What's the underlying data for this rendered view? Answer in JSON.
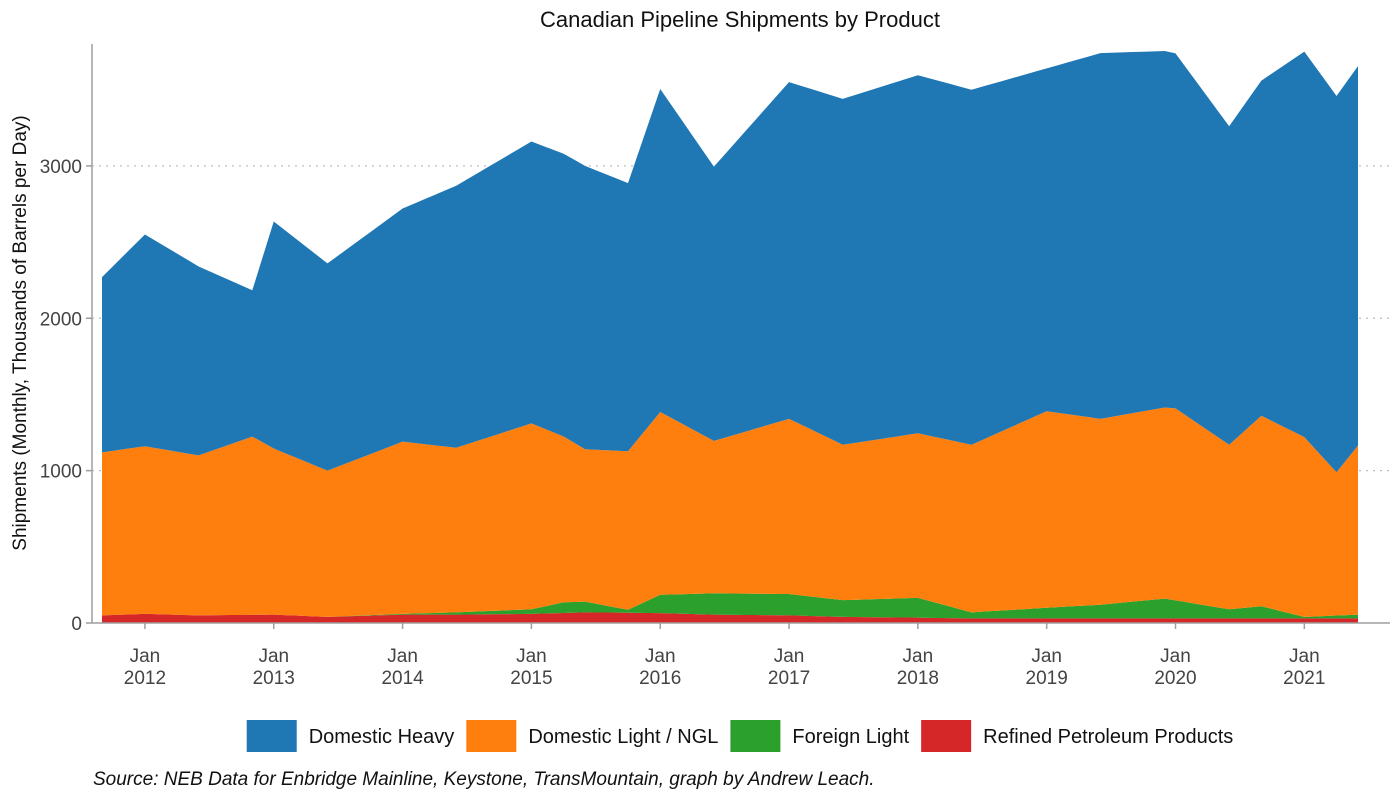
{
  "chart_data": {
    "type": "area",
    "stacked": true,
    "title": "Canadian Pipeline Shipments by Product",
    "ylabel": "Shipments (Monthly, Thousands of Barrels per Day)",
    "xlabel": "",
    "ylim": [
      0,
      3800
    ],
    "y_ticks": [
      0,
      1000,
      2000,
      3000
    ],
    "grid": "horizontal dotted",
    "legend_position": "bottom",
    "x_start": "2011-09",
    "x_end": "2021-06",
    "x_ticks": [
      {
        "month": "Jan",
        "year": "2012",
        "date": "2012-01"
      },
      {
        "month": "Jan",
        "year": "2013",
        "date": "2013-01"
      },
      {
        "month": "Jan",
        "year": "2014",
        "date": "2014-01"
      },
      {
        "month": "Jan",
        "year": "2015",
        "date": "2015-01"
      },
      {
        "month": "Jan",
        "year": "2016",
        "date": "2016-01"
      },
      {
        "month": "Jan",
        "year": "2017",
        "date": "2017-01"
      },
      {
        "month": "Jan",
        "year": "2018",
        "date": "2018-01"
      },
      {
        "month": "Jan",
        "year": "2019",
        "date": "2019-01"
      },
      {
        "month": "Jan",
        "year": "2020",
        "date": "2020-01"
      },
      {
        "month": "Jan",
        "year": "2021",
        "date": "2021-01"
      }
    ],
    "series": [
      {
        "name": "Refined Petroleum Products",
        "color": "#d62728",
        "values": [
          {
            "x": "2011-09",
            "y": 50
          },
          {
            "x": "2012-01",
            "y": 60
          },
          {
            "x": "2012-06",
            "y": 50
          },
          {
            "x": "2013-01",
            "y": 55
          },
          {
            "x": "2013-06",
            "y": 40
          },
          {
            "x": "2014-01",
            "y": 55
          },
          {
            "x": "2014-06",
            "y": 55
          },
          {
            "x": "2015-01",
            "y": 60
          },
          {
            "x": "2015-06",
            "y": 70
          },
          {
            "x": "2016-01",
            "y": 65
          },
          {
            "x": "2016-06",
            "y": 55
          },
          {
            "x": "2017-01",
            "y": 50
          },
          {
            "x": "2017-06",
            "y": 40
          },
          {
            "x": "2018-01",
            "y": 35
          },
          {
            "x": "2018-06",
            "y": 30
          },
          {
            "x": "2019-01",
            "y": 30
          },
          {
            "x": "2019-06",
            "y": 30
          },
          {
            "x": "2020-01",
            "y": 30
          },
          {
            "x": "2020-06",
            "y": 30
          },
          {
            "x": "2021-01",
            "y": 30
          },
          {
            "x": "2021-06",
            "y": 30
          }
        ]
      },
      {
        "name": "Foreign Light",
        "color": "#2ca02c",
        "values": [
          {
            "x": "2011-09",
            "y": 0
          },
          {
            "x": "2012-01",
            "y": 0
          },
          {
            "x": "2012-06",
            "y": 0
          },
          {
            "x": "2013-01",
            "y": 0
          },
          {
            "x": "2013-06",
            "y": 0
          },
          {
            "x": "2014-01",
            "y": 5
          },
          {
            "x": "2014-06",
            "y": 15
          },
          {
            "x": "2015-01",
            "y": 30
          },
          {
            "x": "2015-04",
            "y": 70
          },
          {
            "x": "2015-06",
            "y": 70
          },
          {
            "x": "2015-10",
            "y": 20
          },
          {
            "x": "2016-01",
            "y": 120
          },
          {
            "x": "2016-06",
            "y": 140
          },
          {
            "x": "2017-01",
            "y": 140
          },
          {
            "x": "2017-06",
            "y": 110
          },
          {
            "x": "2018-01",
            "y": 130
          },
          {
            "x": "2018-06",
            "y": 40
          },
          {
            "x": "2019-01",
            "y": 70
          },
          {
            "x": "2019-06",
            "y": 90
          },
          {
            "x": "2019-12",
            "y": 130
          },
          {
            "x": "2020-06",
            "y": 60
          },
          {
            "x": "2020-09",
            "y": 80
          },
          {
            "x": "2021-01",
            "y": 10
          },
          {
            "x": "2021-06",
            "y": 25
          }
        ]
      },
      {
        "name": "Domestic Light / NGL",
        "color": "#ff7f0e",
        "values": [
          {
            "x": "2011-09",
            "y": 1070
          },
          {
            "x": "2012-01",
            "y": 1100
          },
          {
            "x": "2012-06",
            "y": 1050
          },
          {
            "x": "2012-11",
            "y": 1170
          },
          {
            "x": "2013-01",
            "y": 1090
          },
          {
            "x": "2013-06",
            "y": 960
          },
          {
            "x": "2014-01",
            "y": 1130
          },
          {
            "x": "2014-06",
            "y": 1080
          },
          {
            "x": "2015-01",
            "y": 1220
          },
          {
            "x": "2015-06",
            "y": 1000
          },
          {
            "x": "2015-10",
            "y": 1040
          },
          {
            "x": "2016-01",
            "y": 1200
          },
          {
            "x": "2016-06",
            "y": 1000
          },
          {
            "x": "2017-01",
            "y": 1150
          },
          {
            "x": "2017-06",
            "y": 1020
          },
          {
            "x": "2018-01",
            "y": 1080
          },
          {
            "x": "2018-06",
            "y": 1100
          },
          {
            "x": "2019-01",
            "y": 1290
          },
          {
            "x": "2019-06",
            "y": 1220
          },
          {
            "x": "2020-01",
            "y": 1260
          },
          {
            "x": "2020-06",
            "y": 1080
          },
          {
            "x": "2020-09",
            "y": 1250
          },
          {
            "x": "2021-01",
            "y": 1180
          },
          {
            "x": "2021-04",
            "y": 940
          },
          {
            "x": "2021-06",
            "y": 1110
          }
        ]
      },
      {
        "name": "Domestic Heavy",
        "color": "#1f77b4",
        "values": [
          {
            "x": "2011-09",
            "y": 1150
          },
          {
            "x": "2012-01",
            "y": 1390
          },
          {
            "x": "2012-06",
            "y": 1240
          },
          {
            "x": "2012-11",
            "y": 960
          },
          {
            "x": "2013-01",
            "y": 1490
          },
          {
            "x": "2013-06",
            "y": 1360
          },
          {
            "x": "2014-01",
            "y": 1530
          },
          {
            "x": "2014-06",
            "y": 1720
          },
          {
            "x": "2015-01",
            "y": 1850
          },
          {
            "x": "2015-06",
            "y": 1860
          },
          {
            "x": "2015-10",
            "y": 1760
          },
          {
            "x": "2016-01",
            "y": 2120
          },
          {
            "x": "2016-06",
            "y": 1800
          },
          {
            "x": "2017-01",
            "y": 2210
          },
          {
            "x": "2017-06",
            "y": 2270
          },
          {
            "x": "2018-01",
            "y": 2350
          },
          {
            "x": "2018-06",
            "y": 2330
          },
          {
            "x": "2019-01",
            "y": 2250
          },
          {
            "x": "2019-06",
            "y": 2400
          },
          {
            "x": "2020-01",
            "y": 2330
          },
          {
            "x": "2020-06",
            "y": 2090
          },
          {
            "x": "2020-09",
            "y": 2200
          },
          {
            "x": "2021-01",
            "y": 2530
          },
          {
            "x": "2021-04",
            "y": 2470
          },
          {
            "x": "2021-06",
            "y": 2490
          }
        ]
      }
    ],
    "legend_order": [
      "Domestic Heavy",
      "Domestic Light / NGL",
      "Foreign Light",
      "Refined Petroleum Products"
    ],
    "source": "Source: NEB Data for Enbridge Mainline, Keystone, TransMountain, graph by Andrew Leach."
  }
}
